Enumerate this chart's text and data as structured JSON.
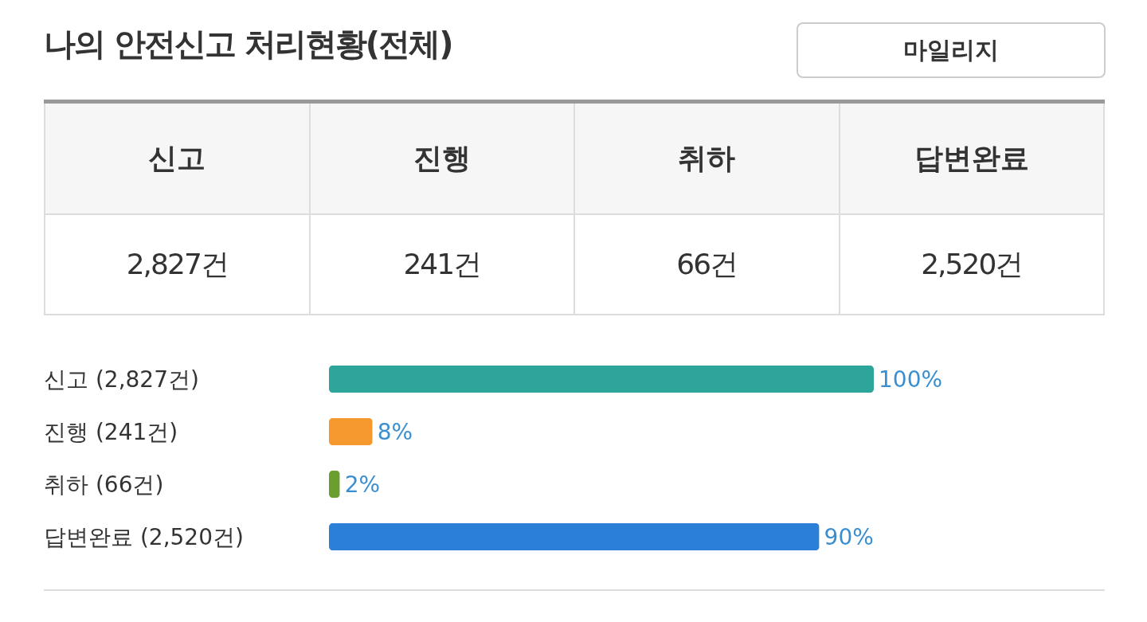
{
  "chart_data": [
    {
      "type": "other",
      "title": "나의 안전신고 처리현황(전체)",
      "annotations": [
        "마일리지",
        "2,827건",
        "241건",
        "66건",
        "2,520건"
      ],
      "categories": [
        "신고",
        "진행",
        "취하",
        "답변완료"
      ]
    },
    {
      "type": "bar",
      "orientation": "horizontal",
      "categories": [
        "신고 (2,827건)",
        "진행 (241건)",
        "취하 (66건)",
        "답변완료 (2,520건)"
      ],
      "values": [
        100,
        8,
        2,
        90
      ],
      "colors": [
        "#2ea59a",
        "#f5992e",
        "#6a9e2e",
        "#2b7fd6"
      ],
      "value_labels": [
        "100%",
        "8%",
        "2%",
        "90%"
      ]
    }
  ]
}
